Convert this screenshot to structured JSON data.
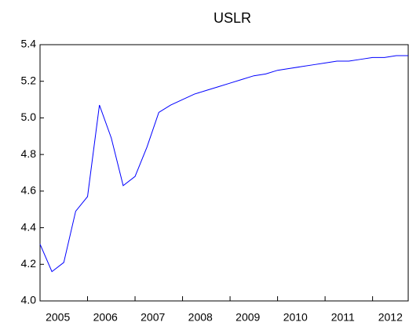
{
  "chart_data": {
    "type": "line",
    "title": "USLR",
    "categories": [
      "2005",
      null,
      null,
      null,
      "2006",
      null,
      null,
      null,
      "2007",
      null,
      null,
      null,
      "2008",
      null,
      null,
      null,
      "2009",
      null,
      null,
      null,
      "2010",
      null,
      null,
      null,
      "2011",
      null,
      null,
      null,
      "2012",
      null,
      null,
      null
    ],
    "values": [
      4.31,
      4.16,
      4.21,
      4.49,
      4.57,
      5.07,
      4.89,
      4.63,
      4.68,
      4.84,
      5.03,
      5.07,
      5.1,
      5.13,
      5.15,
      5.17,
      5.19,
      5.21,
      5.23,
      5.24,
      5.26,
      5.27,
      5.28,
      5.29,
      5.3,
      5.31,
      5.31,
      5.32,
      5.33,
      5.33,
      5.34,
      5.34
    ],
    "color": "#0000ff",
    "ylim": [
      4.0,
      5.4
    ],
    "yticks": [
      {
        "value": 4.0,
        "label": "4.0"
      },
      4.2,
      4.4,
      4.6,
      4.8,
      {
        "value": 5.0,
        "label": "5.0"
      },
      5.2,
      5.4
    ]
  }
}
